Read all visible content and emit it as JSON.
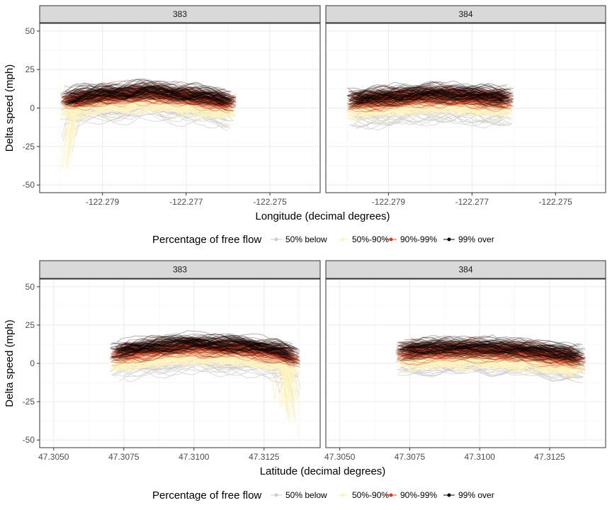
{
  "chart_data": [
    {
      "type": "line",
      "facet_variable": "segment",
      "facets": [
        "383",
        "384"
      ],
      "xlabel": "Longitude (decimal degrees)",
      "ylabel": "Delta speed (mph)",
      "xlim": [
        -122.2805,
        -122.2738
      ],
      "ylim": [
        -55,
        55
      ],
      "x_ticks": [
        -122.279,
        -122.277,
        -122.275
      ],
      "x_tick_labels": [
        "-122.279",
        "-122.277",
        "-122.275"
      ],
      "y_ticks": [
        -50,
        -25,
        0,
        25,
        50
      ],
      "y_tick_labels": [
        "-50",
        "-25",
        "0",
        "25",
        "50"
      ],
      "grid": true,
      "legend": {
        "title": "Percentage of free flow",
        "position": "bottom",
        "entries": [
          {
            "label": "50% below",
            "color": "#cccccc"
          },
          {
            "label": "50%-90%",
            "color": "#fff3bf"
          },
          {
            "label": "90%-99%",
            "color": "#e03a1e"
          },
          {
            "label": "99% over",
            "color": "#000000"
          }
        ]
      },
      "panels": [
        {
          "facet": "383",
          "x_range": [
            -122.28,
            -122.2758
          ],
          "band_center": [
            [
              -122.28,
              3
            ],
            [
              -122.279,
              6
            ],
            [
              -122.278,
              8
            ],
            [
              -122.277,
              6
            ],
            [
              -122.276,
              2
            ]
          ],
          "band_halfwidth": 9,
          "below_tail": {
            "x": [
              -122.28,
              -122.2796
            ],
            "y_min": -40
          }
        },
        {
          "facet": "384",
          "x_range": [
            -122.28,
            -122.276
          ],
          "band_center": [
            [
              -122.28,
              2
            ],
            [
              -122.279,
              4
            ],
            [
              -122.278,
              6
            ],
            [
              -122.277,
              5
            ],
            [
              -122.276,
              3
            ]
          ],
          "band_halfwidth": 9
        }
      ]
    },
    {
      "type": "line",
      "facet_variable": "segment",
      "facets": [
        "383",
        "384"
      ],
      "xlabel": "Latitude (decimal degrees)",
      "ylabel": "Delta speed (mph)",
      "xlim": [
        47.3045,
        47.3145
      ],
      "ylim": [
        -55,
        55
      ],
      "x_ticks": [
        47.305,
        47.3075,
        47.31,
        47.3125
      ],
      "x_tick_labels": [
        "47.3050",
        "47.3075",
        "47.3100",
        "47.3125"
      ],
      "y_ticks": [
        -50,
        -25,
        0,
        25,
        50
      ],
      "y_tick_labels": [
        "-50",
        "-25",
        "0",
        "25",
        "50"
      ],
      "grid": true,
      "legend": {
        "title": "Percentage of free flow",
        "position": "bottom",
        "entries": [
          {
            "label": "50% below",
            "color": "#cccccc"
          },
          {
            "label": "50%-90%",
            "color": "#fff3bf"
          },
          {
            "label": "90%-99%",
            "color": "#e03a1e"
          },
          {
            "label": "99% over",
            "color": "#000000"
          }
        ]
      },
      "panels": [
        {
          "facet": "383",
          "x_range": [
            47.307,
            47.3138
          ],
          "band_center": [
            [
              47.307,
              3
            ],
            [
              47.3085,
              7
            ],
            [
              47.31,
              9
            ],
            [
              47.3115,
              8
            ],
            [
              47.313,
              5
            ],
            [
              47.3138,
              0
            ]
          ],
          "band_halfwidth": 9,
          "below_tail": {
            "x": [
              47.3133,
              47.3138
            ],
            "y_min": -40
          }
        },
        {
          "facet": "384",
          "x_range": [
            47.307,
            47.3138
          ],
          "band_center": [
            [
              47.307,
              5
            ],
            [
              47.3085,
              7
            ],
            [
              47.31,
              7
            ],
            [
              47.3115,
              6
            ],
            [
              47.313,
              3
            ],
            [
              47.3138,
              1
            ]
          ],
          "band_halfwidth": 9
        }
      ]
    }
  ]
}
